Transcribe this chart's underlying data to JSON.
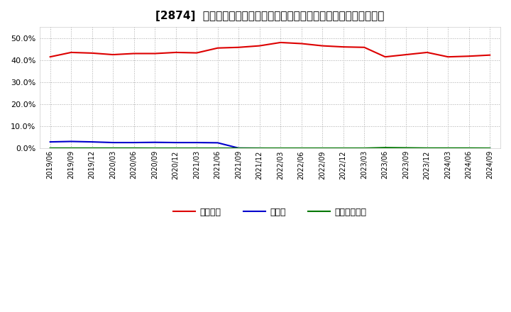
{
  "title": "[2874]  自己資本、のれん、繰延税金資産の総資産に対する比率の推移",
  "x_labels": [
    "2019/06",
    "2019/09",
    "2019/12",
    "2020/03",
    "2020/06",
    "2020/09",
    "2020/12",
    "2021/03",
    "2021/06",
    "2021/09",
    "2021/12",
    "2022/03",
    "2022/06",
    "2022/09",
    "2022/12",
    "2023/03",
    "2023/06",
    "2023/09",
    "2023/12",
    "2024/03",
    "2024/06",
    "2024/09"
  ],
  "jikoshihon": [
    41.5,
    43.5,
    43.2,
    42.5,
    43.0,
    43.0,
    43.5,
    43.3,
    45.5,
    45.8,
    46.5,
    48.0,
    47.5,
    46.5,
    46.0,
    45.8,
    41.5,
    42.5,
    43.5,
    41.5,
    41.8,
    42.3
  ],
  "noren": [
    3.0,
    3.2,
    3.0,
    2.7,
    2.7,
    2.8,
    2.7,
    2.7,
    2.6,
    0.2,
    0.15,
    0.1,
    0.1,
    0.1,
    0.08,
    0.05,
    0.05,
    0.1,
    0.05,
    0.05,
    0.05,
    0.05
  ],
  "kurinobizeikin": [
    0.2,
    0.2,
    0.2,
    0.2,
    0.2,
    0.15,
    0.15,
    0.15,
    0.15,
    0.15,
    0.15,
    0.15,
    0.15,
    0.15,
    0.15,
    0.15,
    0.4,
    0.3,
    0.2,
    0.2,
    0.2,
    0.15
  ],
  "jikoshihon_color": "#dd0000",
  "noren_color": "#0000cc",
  "kurinobizeikin_color": "#007700",
  "background_color": "#ffffff",
  "grid_color": "#aaaaaa",
  "ylim": [
    0,
    55
  ],
  "ytick_vals": [
    0,
    10,
    20,
    30,
    40,
    50
  ],
  "ytick_labels": [
    "0.0%",
    "10.0%",
    "20.0%",
    "30.0%",
    "40.0%",
    "50.0%"
  ],
  "legend_labels": [
    "自己資本",
    "のれん",
    "繰延税金資産"
  ],
  "title_fontsize": 11,
  "tick_fontsize": 8,
  "linewidth": 1.5
}
